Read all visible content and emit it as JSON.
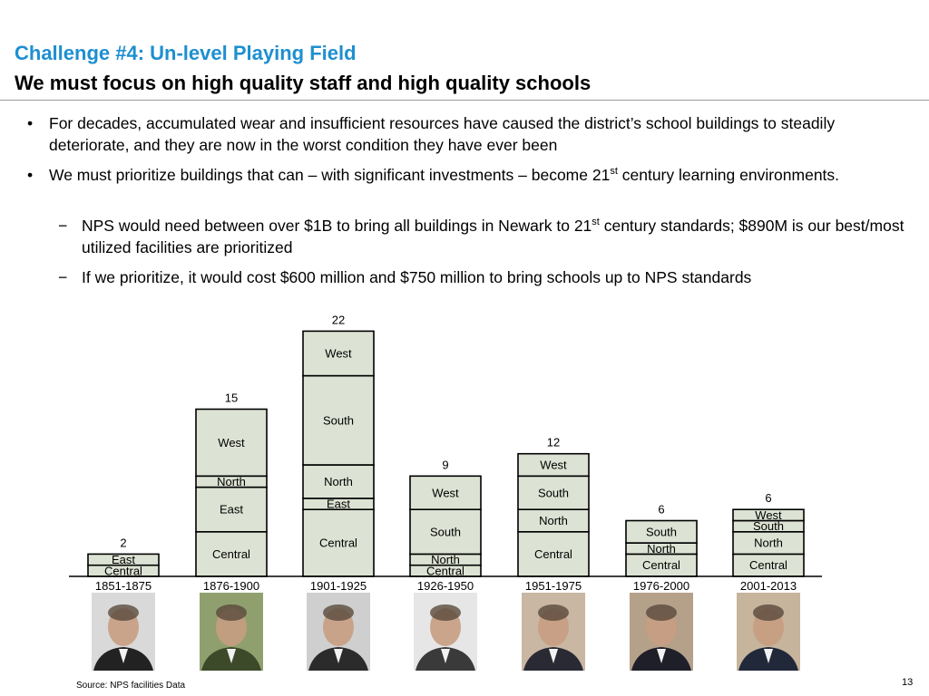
{
  "header": {
    "title": "Challenge #4: Un-level Playing Field",
    "subtitle": "We must focus on high quality staff and high quality schools"
  },
  "bullets": [
    {
      "mark": "•",
      "text": "For decades, accumulated wear and insufficient resources have caused the district’s school buildings to steadily deteriorate, and they are now in the worst condition they have ever been"
    },
    {
      "mark": "•",
      "pre": "We must prioritize buildings that can – with significant investments – become 21",
      "sup": "st",
      "post": " century learning environments."
    },
    {
      "mark": "−",
      "pre": "NPS would need between over $1B to bring all buildings in Newark to 21",
      "sup": "st",
      "post": " century standards; $890M is our best/most utilized facilities are prioritized"
    },
    {
      "mark": "−",
      "text": "If we prioritize, it would cost $600 million and $750 million to bring schools up to NPS standards"
    }
  ],
  "chart_data": {
    "type": "bar",
    "stacked": true,
    "categories": [
      "1851-1875",
      "1876-1900",
      "1901-1925",
      "1926-1950",
      "1951-1975",
      "1976-2000",
      "2001-2013"
    ],
    "series": [
      {
        "name": "Central",
        "values": [
          1,
          4,
          6,
          1,
          4,
          2,
          2
        ]
      },
      {
        "name": "East",
        "values": [
          1,
          4,
          1,
          0,
          0,
          0,
          0
        ]
      },
      {
        "name": "North",
        "values": [
          0,
          1,
          3,
          1,
          2,
          1,
          2
        ]
      },
      {
        "name": "South",
        "values": [
          0,
          0,
          8,
          4,
          3,
          2,
          1
        ]
      },
      {
        "name": "West",
        "values": [
          0,
          6,
          4,
          3,
          2,
          0,
          1
        ]
      }
    ],
    "totals": [
      2,
      15,
      22,
      9,
      12,
      6,
      6
    ],
    "bar_color": "#dde3d4",
    "ylim": [
      0,
      22
    ]
  },
  "portraits": [
    {
      "name": "lincoln-portrait"
    },
    {
      "name": "grant-portrait"
    },
    {
      "name": "roosevelt-portrait"
    },
    {
      "name": "fdr-portrait"
    },
    {
      "name": "kennedy-portrait"
    },
    {
      "name": "reagan-portrait"
    },
    {
      "name": "bush-portrait"
    }
  ],
  "footer": {
    "source": "Source: NPS facilities Data",
    "page_number": "13"
  }
}
